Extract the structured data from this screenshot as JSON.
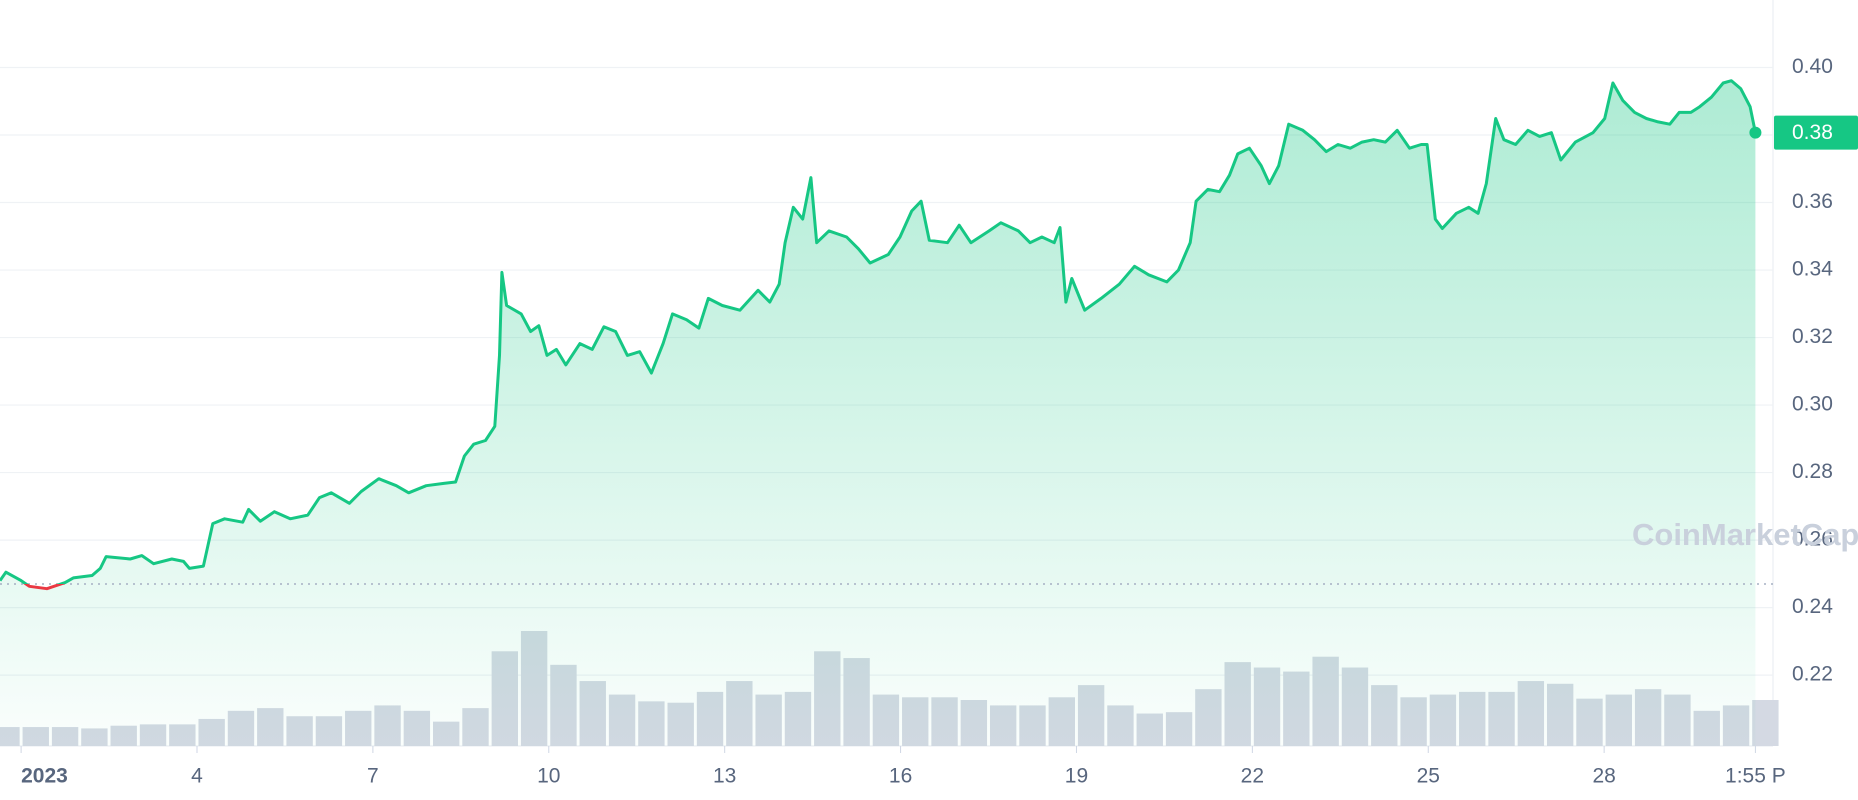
{
  "chart_data": {
    "type": "line",
    "color": "#16c784",
    "down_color": "#ea3943",
    "baseline": 0.247,
    "grid": true,
    "x": [
      0.64,
      0.74,
      1.0,
      1.14,
      1.44,
      1.75,
      1.89,
      2.21,
      2.35,
      2.45,
      2.86,
      3.06,
      3.26,
      3.57,
      3.77,
      3.87,
      4.11,
      4.27,
      4.47,
      4.78,
      4.88,
      5.08,
      5.32,
      5.59,
      5.89,
      6.09,
      6.29,
      6.6,
      6.8,
      7.1,
      7.4,
      7.61,
      7.91,
      8.21,
      8.41,
      8.56,
      8.72,
      8.92,
      9.08,
      9.16,
      9.2,
      9.28,
      9.53,
      9.69,
      9.83,
      9.97,
      10.13,
      10.29,
      10.53,
      10.74,
      10.94,
      11.14,
      11.34,
      11.55,
      11.75,
      11.95,
      12.11,
      12.35,
      12.56,
      12.72,
      12.96,
      13.26,
      13.57,
      13.77,
      13.93,
      14.03,
      14.17,
      14.33,
      14.47,
      14.57,
      14.78,
      15.08,
      15.28,
      15.48,
      15.79,
      15.99,
      16.19,
      16.35,
      16.49,
      16.8,
      17.0,
      17.2,
      17.51,
      17.71,
      18.01,
      18.21,
      18.41,
      18.62,
      18.72,
      18.82,
      18.92,
      19.14,
      19.42,
      19.73,
      19.99,
      20.23,
      20.54,
      20.74,
      20.94,
      21.04,
      21.24,
      21.44,
      21.61,
      21.75,
      21.95,
      22.15,
      22.29,
      22.45,
      22.62,
      22.86,
      23.06,
      23.26,
      23.46,
      23.67,
      23.87,
      24.07,
      24.27,
      24.47,
      24.68,
      24.88,
      24.98,
      25.12,
      25.24,
      25.48,
      25.69,
      25.85,
      25.99,
      26.15,
      26.29,
      26.49,
      26.7,
      26.9,
      27.1,
      27.26,
      27.51,
      27.81,
      28.01,
      28.15,
      28.32,
      28.52,
      28.72,
      28.92,
      29.12,
      29.28,
      29.48,
      29.63,
      29.83,
      30.03,
      30.17,
      30.33,
      30.49,
      30.58
    ],
    "values": [
      0.248,
      0.2505,
      0.248,
      0.2463,
      0.2456,
      0.2474,
      0.2488,
      0.2495,
      0.2516,
      0.2551,
      0.2544,
      0.2554,
      0.253,
      0.2544,
      0.2537,
      0.2516,
      0.2523,
      0.2649,
      0.2663,
      0.2653,
      0.2691,
      0.2656,
      0.2684,
      0.2663,
      0.2674,
      0.2726,
      0.274,
      0.2709,
      0.2744,
      0.2782,
      0.2761,
      0.274,
      0.2761,
      0.2768,
      0.2772,
      0.2849,
      0.2884,
      0.2895,
      0.2937,
      0.3147,
      0.3393,
      0.3295,
      0.327,
      0.3218,
      0.3235,
      0.3147,
      0.3165,
      0.3119,
      0.3182,
      0.3165,
      0.3232,
      0.3218,
      0.3147,
      0.3158,
      0.3095,
      0.3182,
      0.327,
      0.3253,
      0.3228,
      0.3316,
      0.3295,
      0.3281,
      0.334,
      0.3305,
      0.3358,
      0.3481,
      0.3586,
      0.3551,
      0.3674,
      0.3481,
      0.3516,
      0.3498,
      0.3463,
      0.3421,
      0.3446,
      0.3498,
      0.3575,
      0.3604,
      0.3488,
      0.3481,
      0.3533,
      0.3481,
      0.3516,
      0.354,
      0.3516,
      0.3481,
      0.3498,
      0.3481,
      0.3526,
      0.3305,
      0.3375,
      0.3281,
      0.3316,
      0.3358,
      0.3411,
      0.3386,
      0.3365,
      0.34,
      0.3481,
      0.3604,
      0.3639,
      0.3632,
      0.3681,
      0.3744,
      0.3761,
      0.3709,
      0.3656,
      0.3709,
      0.3832,
      0.3814,
      0.3786,
      0.3751,
      0.3772,
      0.3761,
      0.3779,
      0.3786,
      0.3779,
      0.3814,
      0.3761,
      0.3772,
      0.3772,
      0.3551,
      0.3523,
      0.3568,
      0.3586,
      0.3568,
      0.3656,
      0.3849,
      0.3786,
      0.3772,
      0.3814,
      0.3796,
      0.3807,
      0.3726,
      0.3779,
      0.3807,
      0.3849,
      0.3954,
      0.3902,
      0.3867,
      0.3849,
      0.3839,
      0.3832,
      0.3867,
      0.3867,
      0.3884,
      0.3912,
      0.3954,
      0.3961,
      0.3937,
      0.3884,
      0.3807
    ],
    "xlim": [
      0.64,
      30.88
    ],
    "ylim": [
      0.199,
      0.42
    ],
    "yticks": [
      {
        "value": 0.22,
        "label": "0.22"
      },
      {
        "value": 0.24,
        "label": "0.24"
      },
      {
        "value": 0.26,
        "label": "0.26"
      },
      {
        "value": 0.28,
        "label": "0.28"
      },
      {
        "value": 0.3,
        "label": "0.30"
      },
      {
        "value": 0.32,
        "label": "0.32"
      },
      {
        "value": 0.34,
        "label": "0.34"
      },
      {
        "value": 0.36,
        "label": "0.36"
      },
      {
        "value": 0.38,
        "label": "0.38"
      },
      {
        "value": 0.4,
        "label": "0.40"
      }
    ],
    "xticks": [
      {
        "value": 1,
        "label": "2023"
      },
      4,
      7,
      10,
      13,
      16,
      19,
      22,
      25,
      28,
      {
        "value": 30.58,
        "label": "1:55 P"
      }
    ],
    "price_tag": {
      "value": 0.3807,
      "label": "0.38"
    },
    "watermark": "CoinMarketCap",
    "volume": {
      "color": "#d4d9e3",
      "x": [
        0.75,
        1.25,
        1.75,
        2.25,
        2.75,
        3.25,
        3.75,
        4.25,
        4.75,
        5.25,
        5.75,
        6.25,
        6.75,
        7.25,
        7.75,
        8.25,
        8.75,
        9.25,
        9.75,
        10.25,
        10.75,
        11.25,
        11.75,
        12.25,
        12.75,
        13.25,
        13.75,
        14.25,
        14.75,
        15.25,
        15.75,
        16.25,
        16.75,
        17.25,
        17.75,
        18.25,
        18.75,
        19.25,
        19.75,
        20.25,
        20.75,
        21.25,
        21.75,
        22.25,
        22.75,
        23.25,
        23.75,
        24.25,
        24.75,
        25.25,
        25.75,
        26.25,
        26.75,
        27.25,
        27.75,
        28.25,
        28.75,
        29.25,
        29.75,
        30.25,
        30.75
      ],
      "values": [
        14,
        14,
        14,
        13,
        15,
        16,
        16,
        20,
        26,
        28,
        22,
        22,
        26,
        30,
        26,
        18,
        28,
        70,
        85,
        60,
        48,
        38,
        33,
        32,
        40,
        48,
        38,
        40,
        70,
        65,
        38,
        36,
        36,
        34,
        30,
        30,
        36,
        45,
        30,
        24,
        25,
        42,
        62,
        58,
        55,
        66,
        58,
        45,
        36,
        38,
        40,
        40,
        48,
        46,
        35,
        38,
        42,
        38,
        26,
        30,
        34
      ]
    }
  }
}
